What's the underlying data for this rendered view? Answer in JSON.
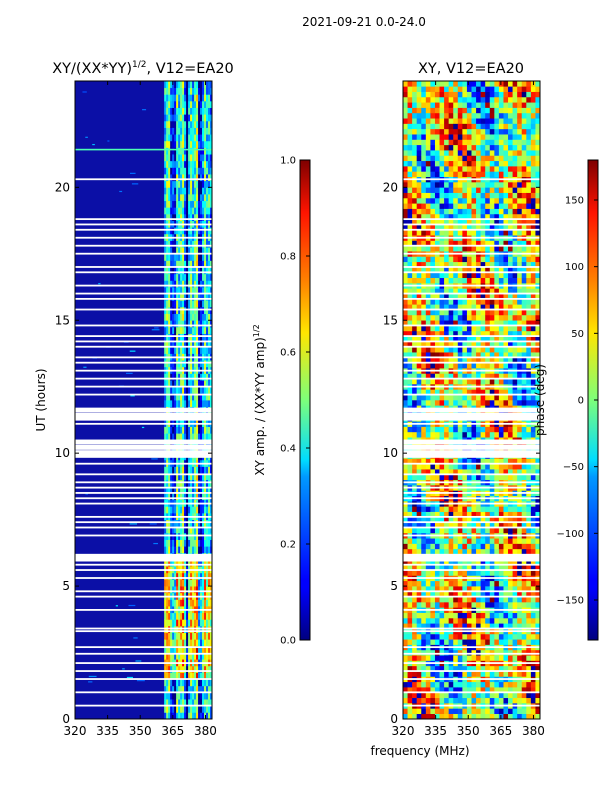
{
  "figure": {
    "suptitle": "2021-09-21 0.0-24.0",
    "xlabel_shared": "frequency (MHz)"
  },
  "chart_data": [
    {
      "type": "heatmap",
      "title": "XY/(XX*YY)",
      "title_exp": "1/2",
      "title_suffix": ", V12=EA20",
      "xlabel": "frequency (MHz)",
      "ylabel": "UT (hours)",
      "xlim": [
        320,
        383
      ],
      "ylim": [
        0,
        24
      ],
      "xticks": [
        320,
        335,
        350,
        365,
        380
      ],
      "yticks": [
        0,
        5,
        10,
        15,
        20
      ],
      "signal_band_mhz": [
        361,
        383
      ],
      "colorbar": {
        "label": "XY amp. / (XX*YY amp)",
        "label_exp": "1/2",
        "range": [
          0.0,
          1.0
        ],
        "ticks": [
          "0.0",
          "0.2",
          "0.4",
          "0.6",
          "0.8",
          "1.0"
        ]
      }
    },
    {
      "type": "heatmap",
      "title": "XY, V12=EA20",
      "xlabel": "frequency (MHz)",
      "ylabel": "",
      "xlim": [
        320,
        383
      ],
      "ylim": [
        0,
        24
      ],
      "xticks": [
        320,
        335,
        350,
        365,
        380
      ],
      "yticks": [
        0,
        5,
        10,
        15,
        20
      ],
      "colorbar": {
        "label": "phase (deg)",
        "range": [
          -180,
          180
        ],
        "ticks": [
          "−150",
          "−100",
          "−50",
          "0",
          "50",
          "100",
          "150"
        ]
      }
    }
  ],
  "flagged_ut_gaps": [
    0.5,
    1.0,
    1.5,
    1.8,
    2.1,
    2.45,
    2.7,
    3.3,
    3.4,
    4.1,
    4.6,
    4.8,
    5.3,
    5.6,
    5.8,
    6.0,
    6.1,
    6.9,
    7.2,
    7.4,
    7.6,
    8.1,
    8.3,
    8.5,
    8.7,
    8.9,
    9.2,
    9.6,
    9.9,
    10.0,
    10.2,
    10.4,
    11.1,
    11.3,
    11.4,
    11.6,
    12.2,
    12.5,
    12.8,
    13.1,
    13.4,
    13.6,
    14.0,
    14.2,
    14.4,
    14.8,
    15.4,
    15.8,
    16.0,
    16.3,
    16.8,
    17.0,
    17.5,
    17.8,
    18.1,
    18.4,
    18.6,
    18.8,
    20.3
  ]
}
